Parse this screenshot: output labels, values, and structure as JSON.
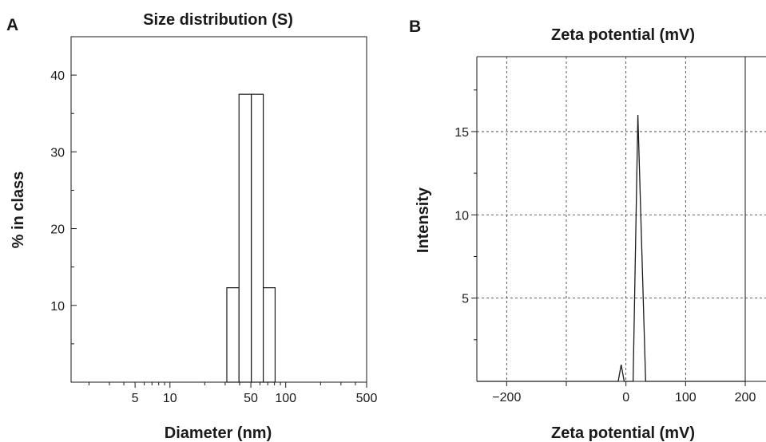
{
  "chart_data": [
    {
      "panel": "A",
      "type": "bar",
      "title": "Size distribution (S)",
      "xlabel": "Diameter (nm)",
      "ylabel": "% in class",
      "xscale": "log",
      "xlim": [
        1.4,
        500
      ],
      "ylim": [
        0,
        45
      ],
      "x_ticks": [
        5,
        10,
        50,
        100,
        500
      ],
      "y_ticks": [
        10,
        20,
        30,
        40
      ],
      "grid": false,
      "bins": [
        {
          "from": 31,
          "to": 39.5,
          "value": 12.3
        },
        {
          "from": 39.5,
          "to": 50.5,
          "value": 37.5
        },
        {
          "from": 50.5,
          "to": 64,
          "value": 37.5
        },
        {
          "from": 64,
          "to": 81,
          "value": 12.3
        }
      ]
    },
    {
      "panel": "B",
      "type": "line",
      "title": "Zeta potential (mV)",
      "xlabel": "Zeta potential (mV)",
      "ylabel": "Intensity",
      "xlim": [
        -250,
        250
      ],
      "ylim": [
        0,
        19.5
      ],
      "x_ticks": [
        -200,
        0,
        100,
        200
      ],
      "y_ticks": [
        5,
        10,
        15
      ],
      "grid": true,
      "series": [
        {
          "x": [
            -250,
            -13,
            -8,
            -3,
            12,
            20,
            33,
            250
          ],
          "y": [
            0,
            0,
            1.0,
            0,
            0,
            16.0,
            0,
            0
          ]
        }
      ]
    }
  ]
}
